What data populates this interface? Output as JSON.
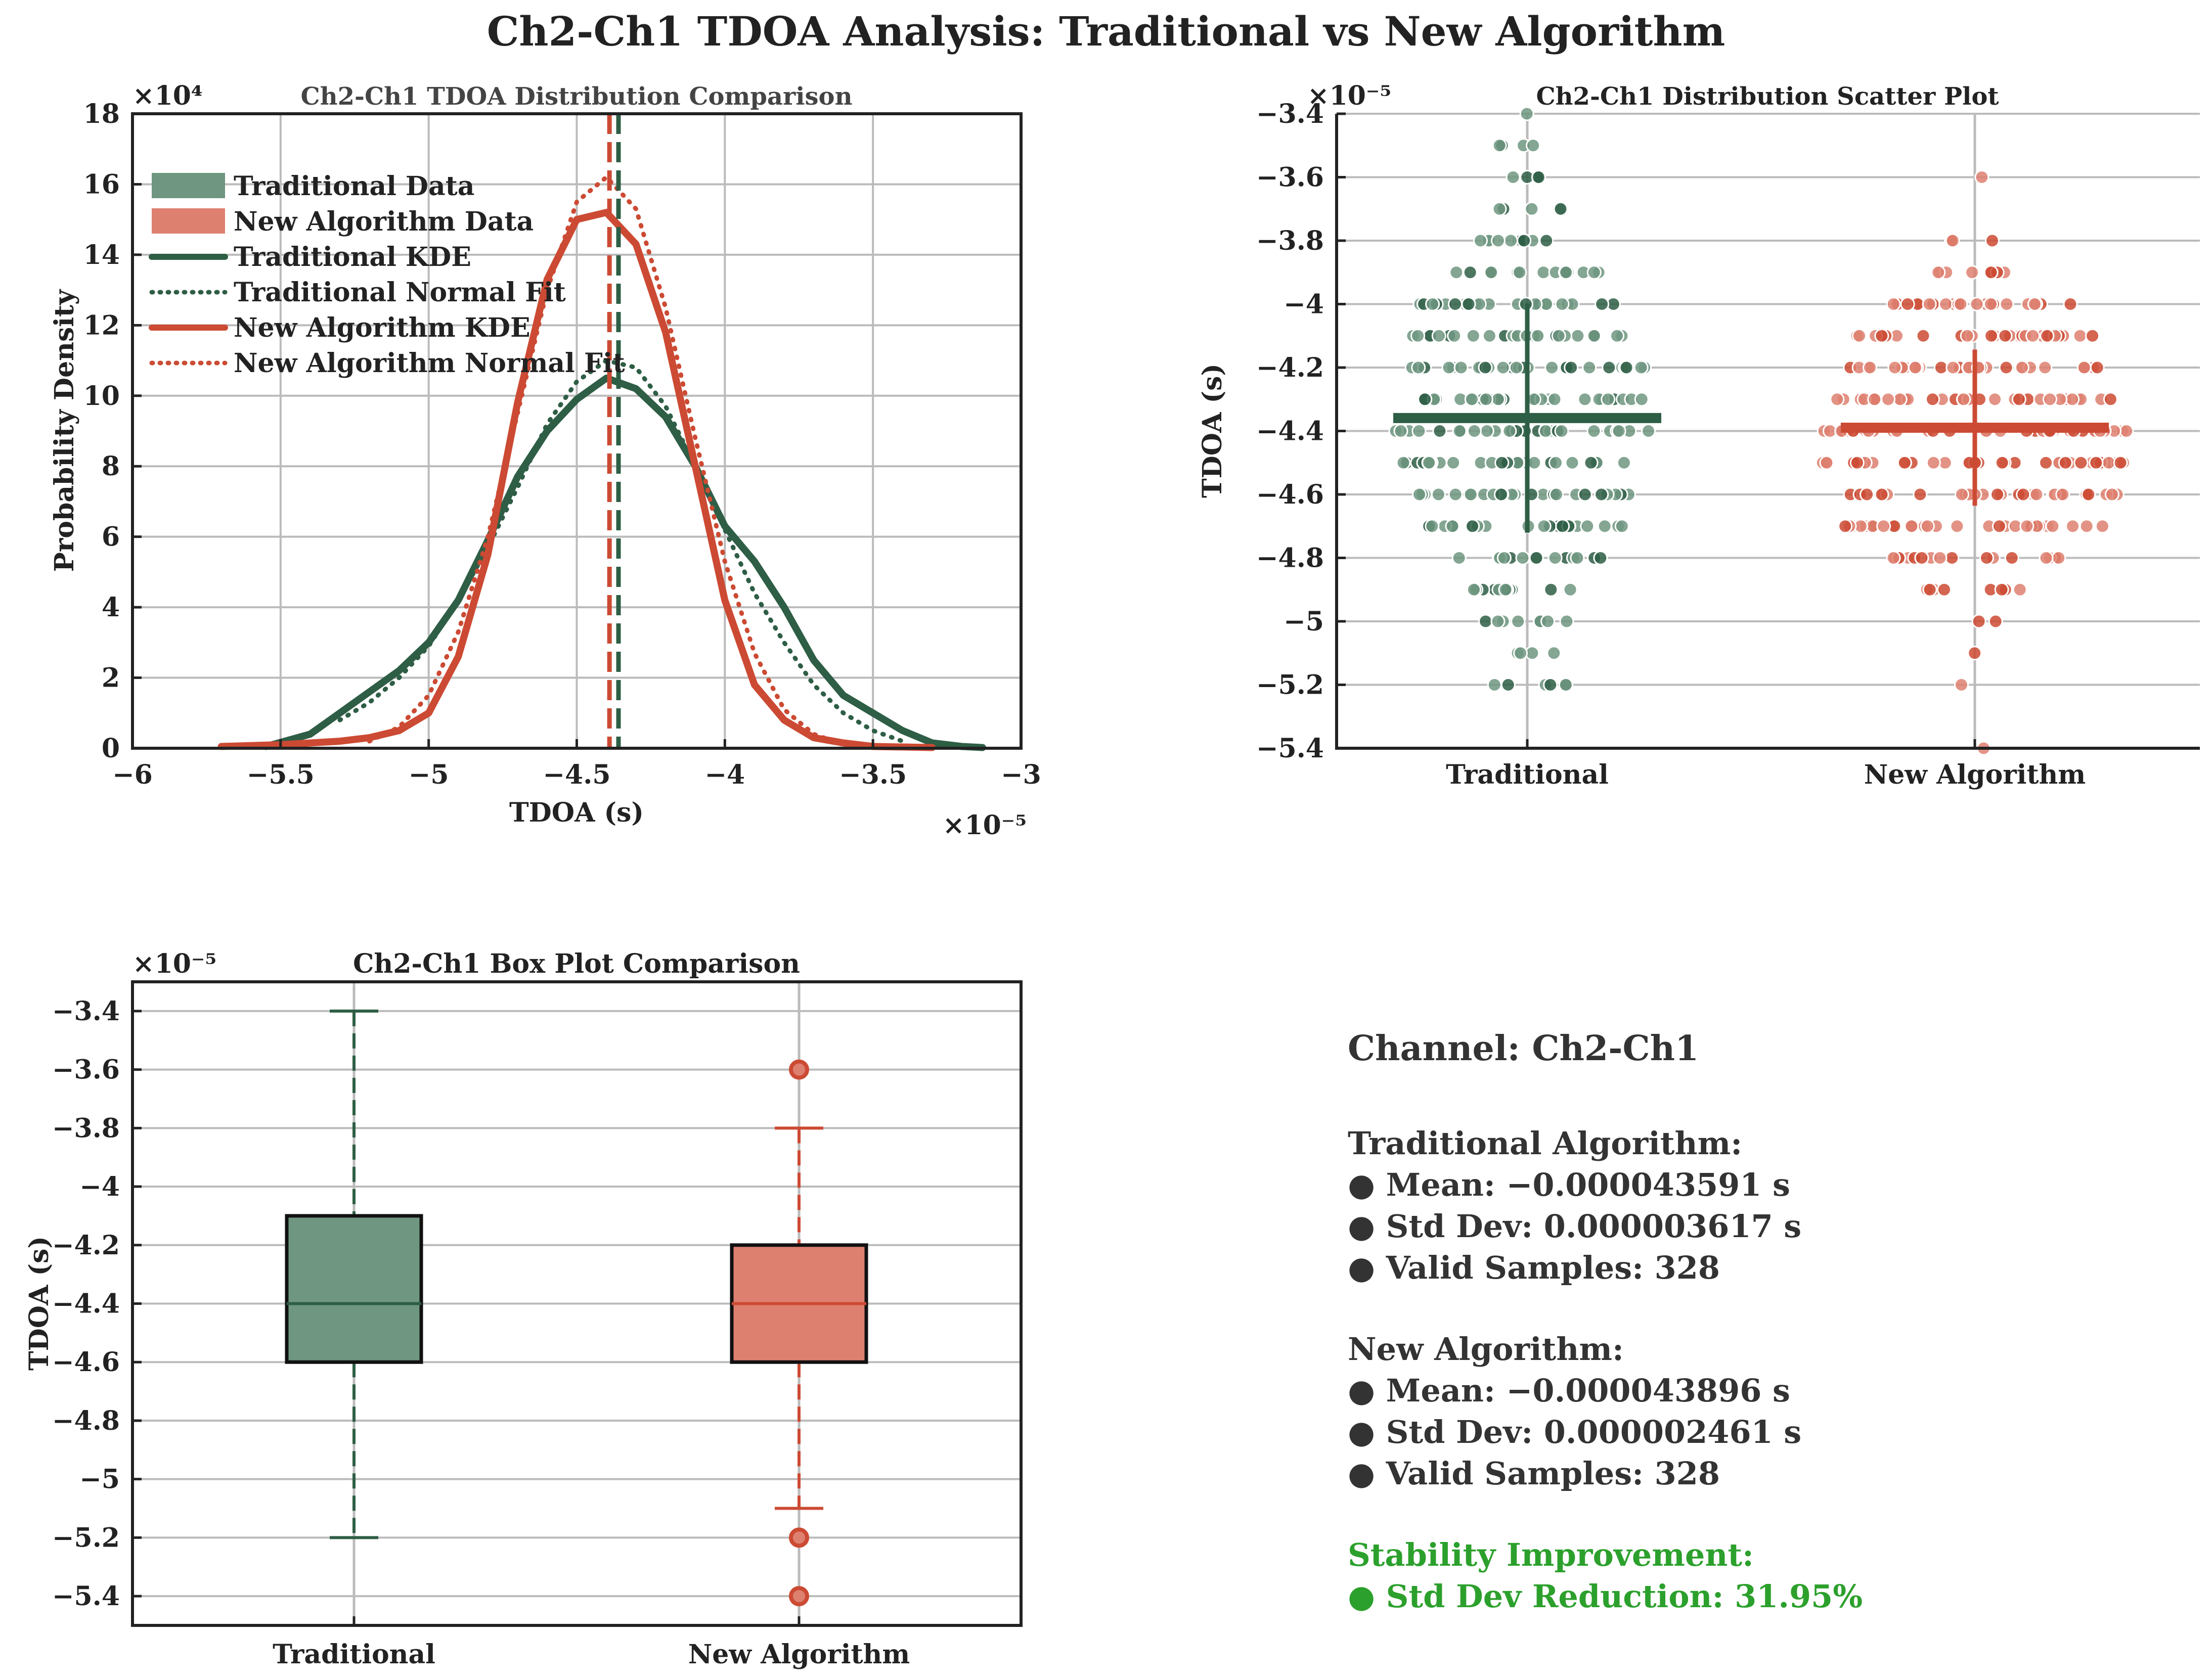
{
  "title": "Ch2-Ch1 TDOA Analysis: Traditional vs New Algorithm",
  "colors": {
    "traditional": "#2e5e45",
    "traditional_fill": "#6e9680",
    "new": "#cc4a33",
    "new_fill": "#de8070",
    "grid": "#bbbbbb",
    "axis": "#222222",
    "improvement": "#2ca02c",
    "text": "#333333"
  },
  "chart_data": [
    {
      "id": "distribution",
      "type": "line",
      "title": "Ch2-Ch1 TDOA Distribution Comparison",
      "xlabel": "TDOA (s)",
      "ylabel": "Probability Density",
      "x_exponent": "×10⁻⁵",
      "y_exponent": "×10⁴",
      "xlim": [
        -6,
        -3
      ],
      "ylim": [
        0,
        18
      ],
      "xticks": [
        -6,
        -5.5,
        -5,
        -4.5,
        -4,
        -3.5,
        -3
      ],
      "xtick_labels": [
        "−6",
        "−5.5",
        "−5",
        "−4.5",
        "−4",
        "−3.5",
        "−3"
      ],
      "yticks": [
        0,
        2,
        4,
        6,
        8,
        10,
        12,
        14,
        16,
        18
      ],
      "ytick_labels": [
        "0",
        "2",
        "4",
        "6",
        "8",
        "10",
        "12",
        "14",
        "16",
        "18"
      ],
      "legend": [
        "Traditional Data",
        "New Algorithm Data",
        "Traditional KDE",
        "Traditional Normal Fit",
        "New Algorithm KDE",
        "New Algorithm Normal Fit"
      ],
      "legend_position": "top-left",
      "series": [
        {
          "name": "Traditional KDE",
          "style": "solid",
          "color": "traditional",
          "x": [
            -5.55,
            -5.4,
            -5.3,
            -5.2,
            -5.1,
            -5.0,
            -4.9,
            -4.8,
            -4.7,
            -4.6,
            -4.5,
            -4.4,
            -4.3,
            -4.2,
            -4.1,
            -4.0,
            -3.9,
            -3.8,
            -3.7,
            -3.6,
            -3.5,
            -3.4,
            -3.3,
            -3.2,
            -3.13
          ],
          "y": [
            0.05,
            0.4,
            1.0,
            1.6,
            2.2,
            3.0,
            4.2,
            5.9,
            7.7,
            9.0,
            9.9,
            10.5,
            10.2,
            9.4,
            8.0,
            6.3,
            5.3,
            4.0,
            2.5,
            1.5,
            1.0,
            0.5,
            0.15,
            0.05,
            0.02
          ]
        },
        {
          "name": "Traditional Normal Fit",
          "style": "dotted",
          "color": "traditional",
          "x": [
            -5.3,
            -5.2,
            -5.1,
            -5.0,
            -4.9,
            -4.8,
            -4.7,
            -4.6,
            -4.5,
            -4.4,
            -4.3,
            -4.2,
            -4.1,
            -4.0,
            -3.9,
            -3.8,
            -3.7,
            -3.6,
            -3.5,
            -3.4
          ],
          "y": [
            0.8,
            1.3,
            2.0,
            2.9,
            4.2,
            5.7,
            7.4,
            9.2,
            10.4,
            11.0,
            10.8,
            9.7,
            8.0,
            6.2,
            4.4,
            3.0,
            1.8,
            1.0,
            0.5,
            0.2
          ]
        },
        {
          "name": "New Algorithm KDE",
          "style": "solid",
          "color": "new",
          "x": [
            -5.7,
            -5.5,
            -5.3,
            -5.2,
            -5.1,
            -5.0,
            -4.9,
            -4.8,
            -4.7,
            -4.6,
            -4.5,
            -4.4,
            -4.3,
            -4.2,
            -4.1,
            -4.0,
            -3.9,
            -3.8,
            -3.7,
            -3.6,
            -3.5,
            -3.3
          ],
          "y": [
            0.05,
            0.1,
            0.2,
            0.3,
            0.5,
            1.0,
            2.6,
            5.5,
            9.8,
            13.3,
            15.0,
            15.2,
            14.3,
            11.8,
            8.0,
            4.2,
            1.8,
            0.8,
            0.3,
            0.15,
            0.05,
            0.02
          ]
        },
        {
          "name": "New Algorithm Normal Fit",
          "style": "dotted",
          "color": "new",
          "x": [
            -5.2,
            -5.1,
            -5.0,
            -4.9,
            -4.8,
            -4.7,
            -4.6,
            -4.5,
            -4.4,
            -4.3,
            -4.2,
            -4.1,
            -4.0,
            -3.9,
            -3.8,
            -3.7,
            -3.6
          ],
          "y": [
            0.2,
            0.6,
            1.5,
            3.3,
            6.0,
            9.5,
            13.0,
            15.5,
            16.2,
            15.3,
            12.5,
            8.8,
            5.3,
            2.7,
            1.1,
            0.4,
            0.1
          ]
        }
      ],
      "mean_lines": [
        {
          "name": "Traditional Mean",
          "x": -4.3591,
          "color": "traditional"
        },
        {
          "name": "New Algorithm Mean",
          "x": -4.3896,
          "color": "new"
        }
      ]
    },
    {
      "id": "scatter",
      "type": "scatter",
      "title": "Ch2-Ch1 Distribution Scatter Plot",
      "xlabel": "",
      "ylabel": "TDOA (s)",
      "y_exponent": "×10⁻⁵",
      "categories": [
        "Traditional",
        "New Algorithm"
      ],
      "ylim": [
        -5.4,
        -3.4
      ],
      "yticks": [
        -5.4,
        -5.2,
        -5.0,
        -4.8,
        -4.6,
        -4.4,
        -4.2,
        -4.0,
        -3.8,
        -3.6,
        -3.4
      ],
      "ytick_labels": [
        "−5.4",
        "−5.2",
        "−5",
        "−4.8",
        "−4.6",
        "−4.4",
        "−4.2",
        "−4",
        "−3.8",
        "−3.6",
        "−3.4"
      ],
      "series": [
        {
          "name": "Traditional",
          "mean": -4.3591,
          "std": 0.3617,
          "level_counts": [
            [
              -3.4,
              1
            ],
            [
              -3.5,
              4
            ],
            [
              -3.6,
              4
            ],
            [
              -3.7,
              5
            ],
            [
              -3.8,
              10
            ],
            [
              -3.9,
              16
            ],
            [
              -4.0,
              24
            ],
            [
              -4.1,
              26
            ],
            [
              -4.2,
              28
            ],
            [
              -4.3,
              28
            ],
            [
              -4.4,
              30
            ],
            [
              -4.5,
              28
            ],
            [
              -4.6,
              24
            ],
            [
              -4.7,
              22
            ],
            [
              -4.8,
              15
            ],
            [
              -4.9,
              12
            ],
            [
              -5.0,
              8
            ],
            [
              -5.1,
              4
            ],
            [
              -5.2,
              6
            ]
          ]
        },
        {
          "name": "New Algorithm",
          "mean": -4.3896,
          "std": 0.2461,
          "level_counts": [
            [
              -3.6,
              1
            ],
            [
              -3.8,
              3
            ],
            [
              -3.9,
              8
            ],
            [
              -4.0,
              22
            ],
            [
              -4.1,
              28
            ],
            [
              -4.2,
              30
            ],
            [
              -4.3,
              32
            ],
            [
              -4.4,
              36
            ],
            [
              -4.5,
              36
            ],
            [
              -4.6,
              34
            ],
            [
              -4.7,
              30
            ],
            [
              -4.8,
              18
            ],
            [
              -4.9,
              8
            ],
            [
              -5.0,
              2
            ],
            [
              -5.1,
              1
            ],
            [
              -5.2,
              1
            ],
            [
              -5.4,
              1
            ]
          ]
        }
      ]
    },
    {
      "id": "box",
      "type": "box",
      "title": "Ch2-Ch1 Box Plot Comparison",
      "xlabel": "",
      "ylabel": "TDOA (s)",
      "y_exponent": "×10⁻⁵",
      "categories": [
        "Traditional",
        "New Algorithm"
      ],
      "ylim": [
        -5.5,
        -3.3
      ],
      "yticks": [
        -5.4,
        -5.2,
        -5.0,
        -4.8,
        -4.6,
        -4.4,
        -4.2,
        -4.0,
        -3.8,
        -3.6,
        -3.4
      ],
      "ytick_labels": [
        "−5.4",
        "−5.2",
        "−5",
        "−4.8",
        "−4.6",
        "−4.4",
        "−4.2",
        "−4",
        "−3.8",
        "−3.6",
        "−3.4"
      ],
      "boxes": [
        {
          "name": "Traditional",
          "q1": -4.6,
          "median": -4.4,
          "q3": -4.1,
          "whisker_low": -5.2,
          "whisker_high": -3.4,
          "outliers": []
        },
        {
          "name": "New Algorithm",
          "q1": -4.6,
          "median": -4.4,
          "q3": -4.2,
          "whisker_low": -5.1,
          "whisker_high": -3.8,
          "outliers": [
            -3.6,
            -5.2,
            -5.4
          ]
        }
      ]
    }
  ],
  "stats": {
    "channel": "Channel: Ch2-Ch1",
    "traditional_header": "Traditional Algorithm:",
    "traditional_mean": "● Mean: −0.000043591 s",
    "traditional_std": "● Std Dev: 0.000003617 s",
    "traditional_samples": "● Valid Samples: 328",
    "new_header": "New Algorithm:",
    "new_mean": "● Mean: −0.000043896 s",
    "new_std": "● Std Dev: 0.000002461 s",
    "new_samples": "● Valid Samples: 328",
    "improvement_header": "Stability Improvement:",
    "improvement_value": "● Std Dev Reduction: 31.95%"
  }
}
